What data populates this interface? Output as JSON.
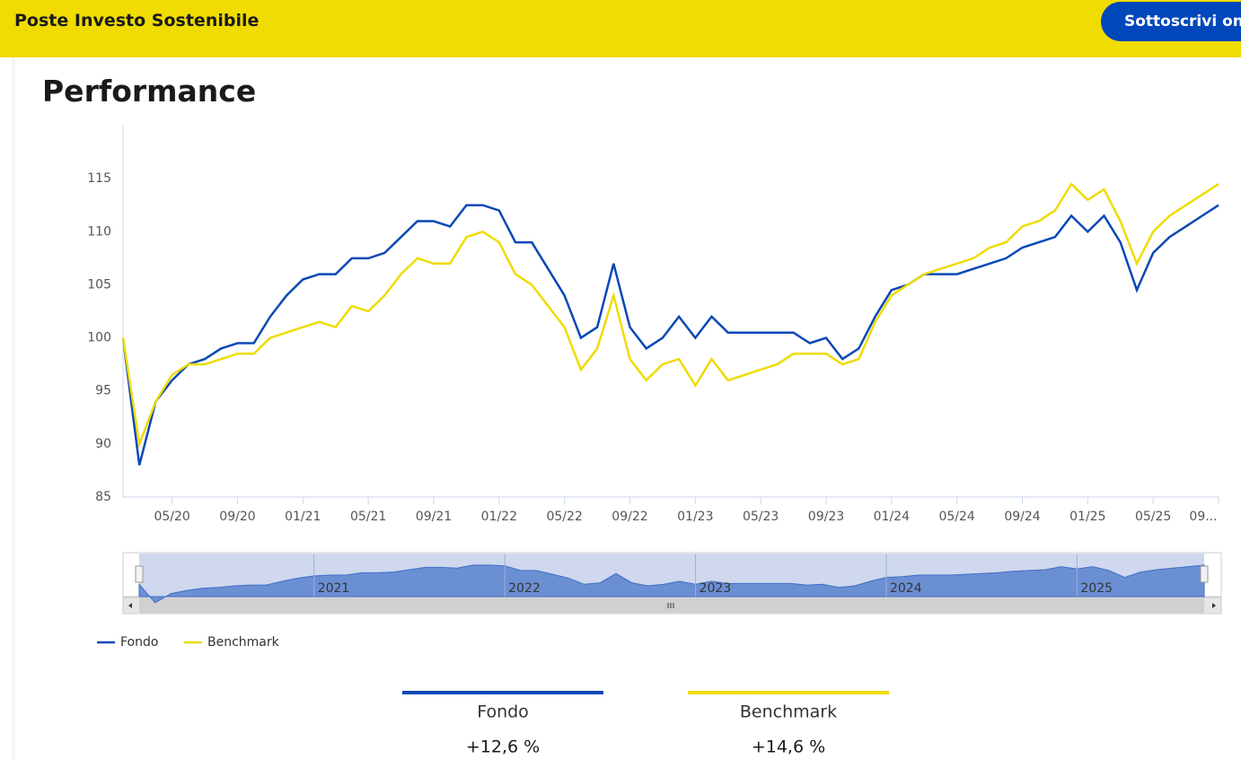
{
  "header": {
    "title": "Poste Investo Sostenibile",
    "button": "Sottoscrivi online"
  },
  "section_title": "Performance",
  "chart_data": {
    "type": "line",
    "x": [
      "2020-02",
      "2020-03",
      "2020-04",
      "2020-05",
      "2020-06",
      "2020-07",
      "2020-08",
      "2020-09",
      "2020-10",
      "2020-11",
      "2020-12",
      "2021-01",
      "2021-02",
      "2021-03",
      "2021-04",
      "2021-05",
      "2021-06",
      "2021-07",
      "2021-08",
      "2021-09",
      "2021-10",
      "2021-11",
      "2021-12",
      "2022-01",
      "2022-02",
      "2022-03",
      "2022-04",
      "2022-05",
      "2022-06",
      "2022-07",
      "2022-08",
      "2022-09",
      "2022-10",
      "2022-11",
      "2022-12",
      "2023-01",
      "2023-02",
      "2023-03",
      "2023-04",
      "2023-05",
      "2023-06",
      "2023-07",
      "2023-08",
      "2023-09",
      "2023-10",
      "2023-11",
      "2023-12",
      "2024-01",
      "2024-02",
      "2024-03",
      "2024-04",
      "2024-05",
      "2024-06",
      "2024-07",
      "2024-08",
      "2024-09",
      "2024-10",
      "2024-11",
      "2024-12",
      "2025-01",
      "2025-02",
      "2025-03",
      "2025-04",
      "2025-05",
      "2025-06",
      "2025-07",
      "2025-08",
      "2025-09"
    ],
    "series": [
      {
        "name": "Fondo",
        "color": "#0a48b5",
        "values": [
          100,
          88,
          94,
          96,
          97.5,
          98,
          99,
          99.5,
          99.5,
          102,
          104,
          105.5,
          106,
          106,
          107.5,
          107.5,
          108,
          109.5,
          111,
          111,
          110.5,
          112.5,
          112.5,
          112,
          109,
          109,
          106.5,
          104,
          100,
          101,
          107,
          101,
          99,
          100,
          102,
          100,
          102,
          100.5,
          100.5,
          100.5,
          100.5,
          100.5,
          99.5,
          100,
          98,
          99,
          102,
          104.5,
          105,
          106,
          106,
          106,
          106.5,
          107,
          107.5,
          108.5,
          109,
          109.5,
          111.5,
          110,
          111.5,
          109,
          104.5,
          108,
          109.5,
          110.5,
          111.5,
          112.5
        ]
      },
      {
        "name": "Benchmark",
        "color": "#eedc00",
        "values": [
          100,
          90,
          94,
          96.5,
          97.5,
          97.5,
          98,
          98.5,
          98.5,
          100,
          100.5,
          101,
          101.5,
          101,
          103,
          102.5,
          104,
          106,
          107.5,
          107,
          107,
          109.5,
          110,
          109,
          106,
          105,
          103,
          101,
          97,
          99,
          104,
          98,
          96,
          97.5,
          98,
          95.5,
          98,
          96,
          96.5,
          97,
          97.5,
          98.5,
          98.5,
          98.5,
          97.5,
          98,
          101.5,
          104,
          105,
          106,
          106.5,
          107,
          107.5,
          108.5,
          109,
          110.5,
          111,
          112,
          114.5,
          113,
          114,
          111,
          107,
          110,
          111.5,
          112.5,
          113.5,
          114.5
        ]
      }
    ],
    "xlim": [
      "2020-02",
      "2025-09"
    ],
    "xticks": [
      {
        "value": "2020-05",
        "label": "05/20"
      },
      {
        "value": "2020-09",
        "label": "09/20"
      },
      {
        "value": "2021-01",
        "label": "01/21"
      },
      {
        "value": "2021-05",
        "label": "05/21"
      },
      {
        "value": "2021-09",
        "label": "09/21"
      },
      {
        "value": "2022-01",
        "label": "01/22"
      },
      {
        "value": "2022-05",
        "label": "05/22"
      },
      {
        "value": "2022-09",
        "label": "09/22"
      },
      {
        "value": "2023-01",
        "label": "01/23"
      },
      {
        "value": "2023-05",
        "label": "05/23"
      },
      {
        "value": "2023-09",
        "label": "09/23"
      },
      {
        "value": "2024-01",
        "label": "01/24"
      },
      {
        "value": "2024-05",
        "label": "05/24"
      },
      {
        "value": "2024-09",
        "label": "09/24"
      },
      {
        "value": "2025-01",
        "label": "01/25"
      },
      {
        "value": "2025-05",
        "label": "05/25"
      },
      {
        "value": "2025-09",
        "label": "09..."
      }
    ],
    "ylim": [
      85,
      120
    ],
    "yticks": [
      85,
      90,
      95,
      100,
      105,
      110,
      115
    ],
    "grid": false,
    "navigator_ticks": [
      {
        "value": "2021-01",
        "label": "2021"
      },
      {
        "value": "2022-01",
        "label": "2022"
      },
      {
        "value": "2023-01",
        "label": "2023"
      },
      {
        "value": "2024-01",
        "label": "2024"
      },
      {
        "value": "2025-01",
        "label": "2025"
      }
    ]
  },
  "summary": [
    {
      "return": "+12,6 %"
    },
    {
      "return": "+14,6 %"
    }
  ]
}
